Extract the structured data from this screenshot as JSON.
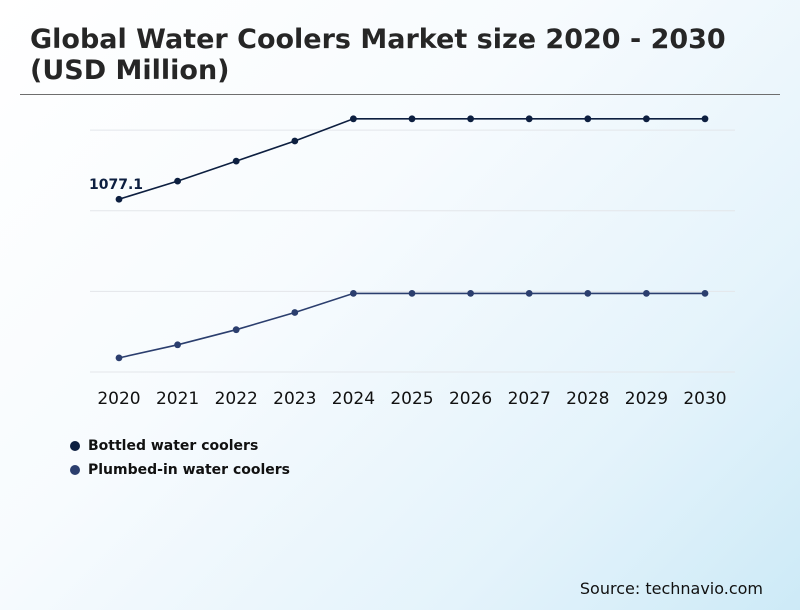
{
  "title": "Global Water Coolers Market size 2020 - 2030 (USD Million)",
  "source": "Source: technavio.com",
  "chart_data": {
    "type": "line",
    "x": [
      "2020",
      "2021",
      "2022",
      "2023",
      "2024",
      "2025",
      "2026",
      "2027",
      "2028",
      "2029",
      "2030"
    ],
    "series": [
      {
        "name": "Bottled water coolers",
        "color": "#0d1f40",
        "values": [
          1077.1,
          1167.0,
          1266.0,
          1366.0,
          1476.0,
          1476.0,
          1476.0,
          1476.0,
          1476.0,
          1476.0,
          1476.0
        ],
        "data_label_index": 0,
        "data_label": "1077.1"
      },
      {
        "name": "Plumbed-in water coolers",
        "color": "#2b3e6e",
        "values": [
          290.0,
          355.0,
          430.0,
          515.0,
          610.0,
          610.0,
          610.0,
          610.0,
          610.0,
          610.0,
          610.0
        ]
      }
    ],
    "ylim": [
      220,
      1480
    ],
    "gridlines": [
      220,
      620,
      1020,
      1420
    ],
    "grid": true,
    "legend_position": "bottom-left",
    "xlabel": "",
    "ylabel": ""
  }
}
